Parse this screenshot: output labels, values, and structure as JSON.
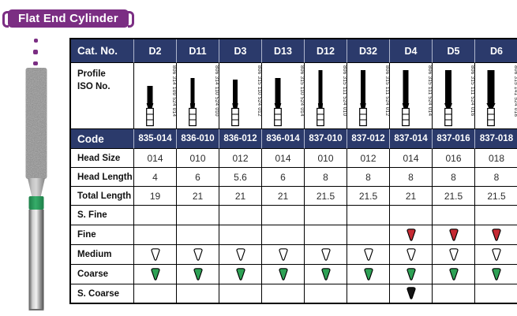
{
  "banner": {
    "title": "Flat End Cylinder",
    "color": "#7B2E83"
  },
  "decor": {
    "dots_color": "#7B2E83"
  },
  "bur_photo": {
    "band_color": "#2EA155"
  },
  "table": {
    "navy": "#2B3A6B",
    "header_label": "Cat. No.",
    "columns": [
      "D2",
      "D11",
      "D3",
      "D13",
      "D12",
      "D32",
      "D4",
      "D5",
      "D6"
    ],
    "profile": {
      "label_lines": [
        "Profile",
        "ISO No."
      ],
      "iso_numbers": [
        "806 314 109 524 014",
        "806 314 110 524 010",
        "806 315 110 524 012",
        "806 315 110 524 014",
        "806 315 111 524 010",
        "806 315 111 524 012",
        "806 315 111 524 014",
        "806 315 111 524 016",
        "806 315 141 524 018"
      ]
    },
    "spec_rows": [
      {
        "label": "Code",
        "theme": "navy",
        "values": [
          "835-014",
          "836-010",
          "836-012",
          "836-014",
          "837-010",
          "837-012",
          "837-014",
          "837-016",
          "837-018"
        ]
      },
      {
        "label": "Head Size",
        "theme": "plain",
        "values": [
          "014",
          "010",
          "012",
          "014",
          "010",
          "012",
          "014",
          "016",
          "018"
        ]
      },
      {
        "label": "Head Length",
        "theme": "plain",
        "values": [
          "4",
          "6",
          "5.6",
          "6",
          "8",
          "8",
          "8",
          "8",
          "8"
        ]
      },
      {
        "label": "Total Length",
        "theme": "plain",
        "values": [
          "19",
          "21",
          "21",
          "21",
          "21.5",
          "21.5",
          "21",
          "21.5",
          "21.5"
        ]
      }
    ],
    "grit_rows": [
      {
        "label": "S. Fine",
        "marks": [
          null,
          null,
          null,
          null,
          null,
          null,
          null,
          null,
          null
        ]
      },
      {
        "label": "Fine",
        "marks": [
          null,
          null,
          null,
          null,
          null,
          null,
          "red",
          "red",
          "red"
        ]
      },
      {
        "label": "Medium",
        "marks": [
          "white",
          "white",
          "white",
          "white",
          "white",
          "white",
          "white",
          "white",
          "white"
        ]
      },
      {
        "label": "Coarse",
        "marks": [
          "green",
          "green",
          "green",
          "green",
          "green",
          "green",
          "green",
          "green",
          "green"
        ]
      },
      {
        "label": "S. Coarse",
        "marks": [
          null,
          null,
          null,
          null,
          null,
          null,
          "black",
          null,
          null
        ]
      }
    ],
    "grit_colors": {
      "white": "#FFFFFF",
      "green": "#2EA155",
      "red": "#C62A33",
      "black": "#141414"
    }
  }
}
